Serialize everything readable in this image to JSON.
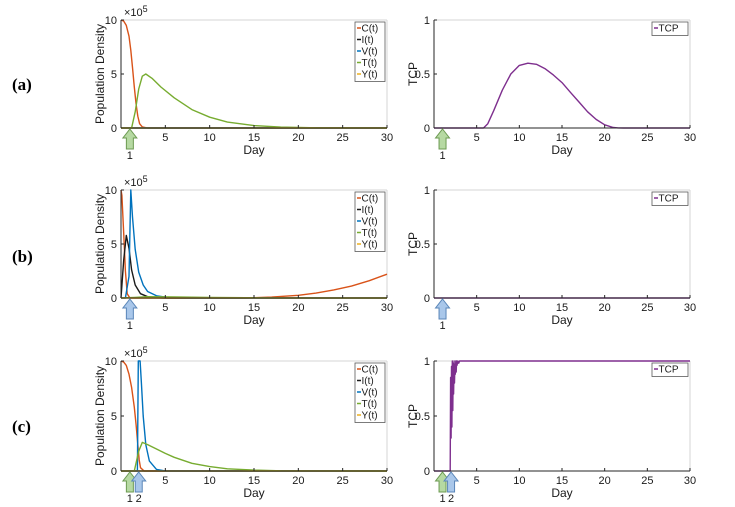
{
  "figure": {
    "panel_labels": [
      "(a)",
      "(b)",
      "(c)"
    ],
    "colors": {
      "C": "#d95319",
      "I": "#1a1a1a",
      "V": "#0072bd",
      "T": "#77ac30",
      "Y": "#edb120",
      "TCP": "#7e2f8e",
      "arrow_green_fill": "#b6d9a2",
      "arrow_green_stroke": "#6c9a52",
      "arrow_blue_fill": "#a9c7ea",
      "arrow_blue_stroke": "#5a86b8"
    }
  },
  "chart_data": [
    {
      "id": "a-pop",
      "type": "line",
      "title": "",
      "xlabel": "Day",
      "ylabel": "Population Density",
      "xlim": [
        0,
        30
      ],
      "ylim": [
        0,
        10
      ],
      "xticks": [
        0,
        5,
        10,
        15,
        20,
        25,
        30
      ],
      "yticks": [
        0,
        5,
        10
      ],
      "y_multiplier": "×10",
      "y_multiplier_exp": "5",
      "legend": [
        "C(t)",
        "I(t)",
        "V(t)",
        "T(t)",
        "Y(t)"
      ],
      "legend_position": "top-right",
      "markers": [
        {
          "day": 1,
          "label": "1",
          "color": "green"
        }
      ],
      "series": [
        {
          "name": "C(t)",
          "key": "C",
          "x": [
            0,
            0.3,
            0.6,
            0.9,
            1.1,
            1.3,
            1.5,
            1.7,
            1.9,
            2.1,
            2.4,
            3,
            30
          ],
          "values": [
            10,
            9.9,
            9.5,
            8.5,
            7.2,
            5.6,
            3.8,
            2.2,
            1.1,
            0.4,
            0.1,
            0,
            0
          ]
        },
        {
          "name": "I(t)",
          "key": "I",
          "x": [
            0,
            30
          ],
          "values": [
            0,
            0
          ]
        },
        {
          "name": "V(t)",
          "key": "V",
          "x": [
            0,
            30
          ],
          "values": [
            0,
            0
          ]
        },
        {
          "name": "T(t)",
          "key": "T",
          "x": [
            0,
            1.2,
            1.6,
            2.0,
            2.4,
            2.8,
            3.5,
            4.5,
            6,
            8,
            10,
            12,
            15,
            18,
            22,
            30
          ],
          "values": [
            0,
            0,
            1.5,
            3.6,
            4.8,
            5.0,
            4.6,
            3.8,
            2.8,
            1.7,
            1.0,
            0.55,
            0.22,
            0.08,
            0.02,
            0
          ]
        },
        {
          "name": "Y(t)",
          "key": "Y",
          "x": [
            0,
            30
          ],
          "values": [
            0,
            0
          ]
        }
      ]
    },
    {
      "id": "a-tcp",
      "type": "line",
      "title": "",
      "xlabel": "Day",
      "ylabel": "TCP",
      "xlim": [
        0,
        30
      ],
      "ylim": [
        0,
        1
      ],
      "xticks": [
        0,
        5,
        10,
        15,
        20,
        25,
        30
      ],
      "yticks": [
        0,
        0.5,
        1
      ],
      "legend": [
        "TCP"
      ],
      "legend_position": "top-right",
      "markers": [
        {
          "day": 1,
          "label": "1",
          "color": "green"
        }
      ],
      "series": [
        {
          "name": "TCP",
          "key": "TCP",
          "x": [
            0,
            5.8,
            6.3,
            7,
            8,
            9,
            10,
            11,
            12,
            13,
            14,
            15,
            16,
            17,
            18,
            19,
            20,
            21,
            21.6,
            22.2,
            30
          ],
          "values": [
            0,
            0,
            0.04,
            0.16,
            0.35,
            0.5,
            0.58,
            0.6,
            0.59,
            0.55,
            0.49,
            0.42,
            0.33,
            0.24,
            0.15,
            0.08,
            0.03,
            0.005,
            0.001,
            0,
            0
          ]
        }
      ]
    },
    {
      "id": "b-pop",
      "type": "line",
      "title": "",
      "xlabel": "Day",
      "ylabel": "Population Density",
      "xlim": [
        0,
        30
      ],
      "ylim": [
        0,
        10
      ],
      "xticks": [
        0,
        5,
        10,
        15,
        20,
        25,
        30
      ],
      "yticks": [
        0,
        5,
        10
      ],
      "y_multiplier": "×10",
      "y_multiplier_exp": "5",
      "legend": [
        "C(t)",
        "I(t)",
        "V(t)",
        "T(t)",
        "Y(t)"
      ],
      "legend_position": "top-right",
      "markers": [
        {
          "day": 1,
          "label": "1",
          "color": "blue"
        }
      ],
      "series": [
        {
          "name": "C(t)",
          "key": "C",
          "x": [
            0,
            0.1,
            0.3,
            0.5,
            0.7,
            1.0,
            14,
            17,
            20,
            22,
            24,
            26,
            28,
            30
          ],
          "values": [
            10,
            9.5,
            6,
            2.5,
            0.4,
            0,
            0,
            0.08,
            0.25,
            0.45,
            0.75,
            1.1,
            1.6,
            2.2
          ]
        },
        {
          "name": "I(t)",
          "key": "I",
          "x": [
            0,
            0.3,
            0.6,
            0.9,
            1.2,
            1.6,
            2.2,
            3,
            4,
            5,
            30
          ],
          "values": [
            0,
            3.5,
            5.8,
            4.6,
            2.6,
            1.2,
            0.4,
            0.12,
            0.03,
            0,
            0
          ]
        },
        {
          "name": "V(t)",
          "key": "V",
          "x": [
            0,
            0.5,
            0.9,
            1.1,
            1.3,
            1.6,
            2.0,
            2.5,
            3,
            4,
            5,
            6,
            8,
            30
          ],
          "values": [
            0,
            0,
            2,
            10,
            7.5,
            4.5,
            2.4,
            1.2,
            0.6,
            0.2,
            0.08,
            0.02,
            0,
            0
          ]
        },
        {
          "name": "T(t)",
          "key": "T",
          "x": [
            0,
            1.5,
            3,
            6,
            10,
            14,
            18,
            30
          ],
          "values": [
            0,
            0.06,
            0.12,
            0.1,
            0.06,
            0.03,
            0.01,
            0
          ]
        },
        {
          "name": "Y(t)",
          "key": "Y",
          "x": [
            0,
            30
          ],
          "values": [
            0,
            0
          ]
        }
      ]
    },
    {
      "id": "b-tcp",
      "type": "line",
      "title": "",
      "xlabel": "Day",
      "ylabel": "TCP",
      "xlim": [
        0,
        30
      ],
      "ylim": [
        0,
        1
      ],
      "xticks": [
        0,
        5,
        10,
        15,
        20,
        25,
        30
      ],
      "yticks": [
        0,
        0.5,
        1
      ],
      "legend": [
        "TCP"
      ],
      "legend_position": "top-right",
      "markers": [
        {
          "day": 1,
          "label": "1",
          "color": "blue"
        }
      ],
      "series": [
        {
          "name": "TCP",
          "key": "TCP",
          "x": [
            0,
            30
          ],
          "values": [
            0,
            0
          ]
        }
      ]
    },
    {
      "id": "c-pop",
      "type": "line",
      "title": "",
      "xlabel": "Day",
      "ylabel": "Population Density",
      "xlim": [
        0,
        30
      ],
      "ylim": [
        0,
        10
      ],
      "xticks": [
        0,
        5,
        10,
        15,
        20,
        25,
        30
      ],
      "yticks": [
        0,
        5,
        10
      ],
      "y_multiplier": "×10",
      "y_multiplier_exp": "5",
      "legend": [
        "C(t)",
        "I(t)",
        "V(t)",
        "T(t)",
        "Y(t)"
      ],
      "legend_position": "top-right",
      "markers": [
        {
          "day": 1,
          "label": "1",
          "color": "green"
        },
        {
          "day": 2,
          "label": "2",
          "color": "blue"
        }
      ],
      "series": [
        {
          "name": "C(t)",
          "key": "C",
          "x": [
            0,
            0.3,
            0.6,
            0.9,
            1.2,
            1.5,
            1.7,
            1.9,
            2.05,
            2.2,
            2.6,
            30
          ],
          "values": [
            10,
            9.9,
            9.6,
            8.8,
            7.6,
            5.8,
            4.2,
            2.4,
            1.0,
            0.3,
            0,
            0
          ]
        },
        {
          "name": "I(t)",
          "key": "I",
          "x": [
            0,
            30
          ],
          "values": [
            0,
            0
          ]
        },
        {
          "name": "V(t)",
          "key": "V",
          "x": [
            0,
            1.85,
            1.95,
            2.05,
            2.15,
            2.3,
            2.5,
            2.8,
            3.2,
            4,
            5,
            30
          ],
          "values": [
            0,
            0,
            10,
            10,
            10,
            8,
            5,
            2.4,
            0.9,
            0.15,
            0,
            0
          ]
        },
        {
          "name": "T(t)",
          "key": "T",
          "x": [
            0,
            1.5,
            2.0,
            2.4,
            3,
            4,
            5,
            6,
            8,
            10,
            12,
            15,
            18,
            30
          ],
          "values": [
            0,
            0,
            1.8,
            2.6,
            2.4,
            2.0,
            1.6,
            1.25,
            0.7,
            0.4,
            0.2,
            0.08,
            0.02,
            0
          ]
        },
        {
          "name": "Y(t)",
          "key": "Y",
          "x": [
            0,
            30
          ],
          "values": [
            0,
            0
          ]
        }
      ]
    },
    {
      "id": "c-tcp",
      "type": "line",
      "title": "",
      "xlabel": "Day",
      "ylabel": "TCP",
      "xlim": [
        0,
        30
      ],
      "ylim": [
        0,
        1
      ],
      "xticks": [
        0,
        5,
        10,
        15,
        20,
        25,
        30
      ],
      "yticks": [
        0,
        0.5,
        1
      ],
      "legend": [
        "TCP"
      ],
      "legend_position": "top-right",
      "markers": [
        {
          "day": 1,
          "label": "1",
          "color": "green"
        },
        {
          "day": 2,
          "label": "2",
          "color": "blue"
        }
      ],
      "series": [
        {
          "name": "TCP",
          "key": "TCP",
          "x": [
            0,
            1.9,
            1.95,
            2.0,
            2.05,
            2.1,
            2.15,
            2.2,
            2.25,
            2.3,
            2.35,
            2.4,
            2.45,
            2.5,
            2.55,
            2.6,
            2.65,
            2.7,
            2.8,
            2.9,
            3.0,
            30
          ],
          "values": [
            0,
            0,
            0.85,
            0.3,
            0.95,
            0.4,
            1.0,
            0.55,
            0.98,
            0.7,
            1.0,
            0.8,
            0.97,
            0.88,
            1.0,
            0.9,
            1.0,
            0.96,
            1.0,
            0.98,
            1.0,
            1.0
          ]
        }
      ]
    }
  ]
}
